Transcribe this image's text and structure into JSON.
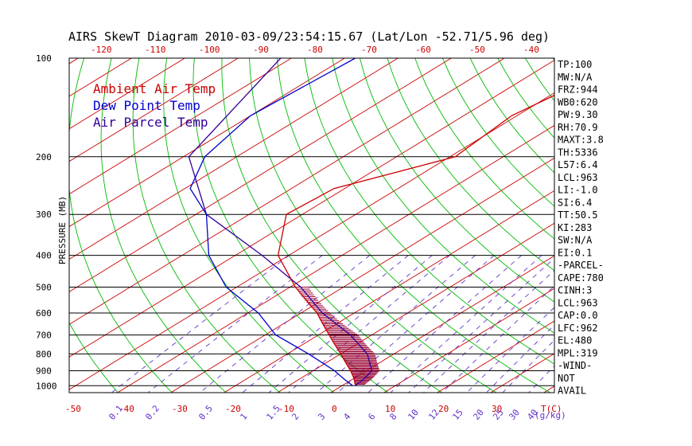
{
  "title": "AIRS SkewT Diagram 2010-03-09/23:54:15.67 (Lat/Lon -52.71/5.96 deg)",
  "colors": {
    "temp": "#cc0000",
    "dewpoint": "#0000cc",
    "parcel": "#330099",
    "isotherm": "#cc0000",
    "dry_adiabat": "#00bb00",
    "moist_adiabat": "#33cc33",
    "mixing_ratio": "#6633cc",
    "pressure_line": "#000000",
    "cape_hatch": "#990033"
  },
  "chart_data": {
    "type": "skewt",
    "ylabel": "PRESSURE (MB)",
    "pressure_ticks": [
      100,
      200,
      300,
      400,
      500,
      600,
      700,
      800,
      900,
      1000
    ],
    "bottom_temp_ticks": [
      -50,
      -40,
      -30,
      -20,
      -10,
      0,
      10,
      20,
      30
    ],
    "top_temp_ticks": [
      -120,
      -110,
      -100,
      -90,
      -80,
      -70,
      -60,
      -50,
      -40
    ],
    "temp_axis_label": "T(C)",
    "mixing_ratio_ticks": [
      "0.1",
      "0.2",
      "0.5",
      "1",
      "1.5",
      "2",
      "3",
      "4",
      "6",
      "8",
      "10",
      "12",
      "15",
      "20",
      "25",
      "30",
      "40"
    ],
    "mixing_ratio_label": "(g/kg)",
    "legend": [
      {
        "label": "Ambient Air Temp",
        "color": "#cc0000"
      },
      {
        "label": "Dew Point Temp",
        "color": "#0000cc"
      },
      {
        "label": "Air Parcel Temp",
        "color": "#330099"
      }
    ],
    "temperature_profile": [
      {
        "p": 100,
        "t": -46
      },
      {
        "p": 150,
        "t": -51
      },
      {
        "p": 200,
        "t": -49
      },
      {
        "p": 250,
        "t": -62
      },
      {
        "p": 300,
        "t": -63
      },
      {
        "p": 400,
        "t": -52
      },
      {
        "p": 500,
        "t": -39
      },
      {
        "p": 600,
        "t": -27
      },
      {
        "p": 700,
        "t": -18
      },
      {
        "p": 800,
        "t": -10
      },
      {
        "p": 900,
        "t": -3
      },
      {
        "p": 950,
        "t": 0
      },
      {
        "p": 1000,
        "t": 2.5
      }
    ],
    "dewpoint_profile": [
      {
        "p": 100,
        "t": -98
      },
      {
        "p": 150,
        "t": -100
      },
      {
        "p": 200,
        "t": -96
      },
      {
        "p": 250,
        "t": -89
      },
      {
        "p": 300,
        "t": -78
      },
      {
        "p": 400,
        "t": -65
      },
      {
        "p": 500,
        "t": -52
      },
      {
        "p": 600,
        "t": -38
      },
      {
        "p": 700,
        "t": -28
      },
      {
        "p": 800,
        "t": -16
      },
      {
        "p": 900,
        "t": -6
      },
      {
        "p": 950,
        "t": -2
      },
      {
        "p": 1000,
        "t": 2
      }
    ],
    "parcel_profile": [
      {
        "p": 100,
        "t": -112
      },
      {
        "p": 200,
        "t": -99
      },
      {
        "p": 300,
        "t": -78
      },
      {
        "p": 400,
        "t": -55
      },
      {
        "p": 500,
        "t": -38
      },
      {
        "p": 600,
        "t": -26
      },
      {
        "p": 700,
        "t": -14
      },
      {
        "p": 800,
        "t": -5
      },
      {
        "p": 900,
        "t": 1
      },
      {
        "p": 950,
        "t": 2
      },
      {
        "p": 1000,
        "t": 2.5
      }
    ],
    "indices": [
      "TP:100",
      "MW:N/A",
      "FRZ:944",
      "WB0:620",
      "PW:9.30",
      "RH:70.9",
      "MAXT:3.8",
      "TH:5336",
      "L57:6.4",
      "LCL:963",
      "LI:-1.0",
      "SI:6.4",
      "TT:50.5",
      "KI:283",
      "SW:N/A",
      "EI:0.1",
      "-PARCEL-",
      "CAPE:780",
      "CINH:3",
      "LCL:963",
      "CAP:0.0",
      "LFC:962",
      "EL:480",
      "MPL:319",
      "-WIND-",
      "NOT",
      "AVAIL"
    ]
  }
}
